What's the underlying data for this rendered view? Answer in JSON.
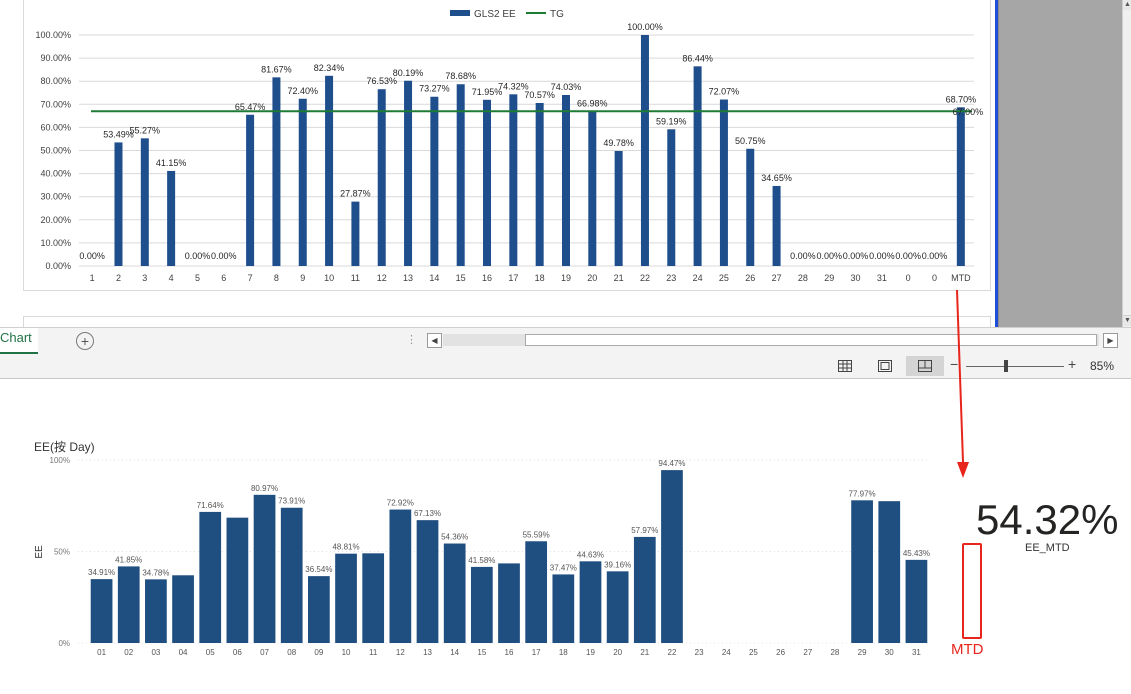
{
  "excel": {
    "sheet_tab": "Chart",
    "zoom": "85%",
    "zoom_minus": "−",
    "zoom_plus": "+"
  },
  "chart_data": [
    {
      "type": "bar",
      "legend": [
        "GLS2 EE",
        "TG"
      ],
      "legend_position": "top",
      "categories": [
        "1",
        "2",
        "3",
        "4",
        "5",
        "6",
        "7",
        "8",
        "9",
        "10",
        "11",
        "12",
        "13",
        "14",
        "15",
        "16",
        "17",
        "18",
        "19",
        "20",
        "21",
        "22",
        "23",
        "24",
        "25",
        "26",
        "27",
        "28",
        "29",
        "30",
        "31",
        "0",
        "0",
        "MTD"
      ],
      "series": [
        {
          "name": "GLS2 EE",
          "values": [
            0,
            53.49,
            55.27,
            41.15,
            0,
            0,
            65.47,
            81.67,
            72.4,
            82.34,
            27.87,
            76.53,
            80.19,
            73.27,
            78.68,
            71.95,
            74.32,
            70.57,
            74.03,
            66.98,
            49.78,
            100.0,
            59.19,
            86.44,
            72.07,
            50.75,
            34.65,
            0,
            0,
            0,
            0,
            0,
            0,
            68.7
          ]
        },
        {
          "name": "TG",
          "type": "line",
          "value": 67.0
        }
      ],
      "data_labels": [
        "0.00%",
        "53.49%",
        "55.27%",
        "41.15%",
        "0.00%",
        "0.00%",
        "65.47%",
        "81.67%",
        "72.40%",
        "82.34%",
        "27.87%",
        "76.53%",
        "80.19%",
        "73.27%",
        "78.68%",
        "71.95%",
        "74.32%",
        "70.57%",
        "74.03%",
        "66.98%",
        "49.78%",
        "100.00%",
        "59.19%",
        "86.44%",
        "72.07%",
        "50.75%",
        "34.65%",
        "0.00%",
        "0.00%",
        "0.00%",
        "0.00%",
        "0.00%",
        "0.00%",
        "68.70%"
      ],
      "tg_label": "67.00%",
      "y_ticks": [
        "0.00%",
        "10.00%",
        "20.00%",
        "30.00%",
        "40.00%",
        "50.00%",
        "60.00%",
        "70.00%",
        "80.00%",
        "90.00%",
        "100.00%"
      ],
      "ylim": [
        0,
        100
      ],
      "grid": true,
      "colors": {
        "bar": "#1f4e8c",
        "tg": "#1e7b34"
      }
    },
    {
      "type": "bar",
      "title": "EE(按 Day)",
      "ylabel": "EE",
      "categories": [
        "01",
        "02",
        "03",
        "04",
        "05",
        "06",
        "07",
        "08",
        "09",
        "10",
        "11",
        "12",
        "13",
        "14",
        "15",
        "16",
        "17",
        "18",
        "19",
        "20",
        "21",
        "22",
        "23",
        "24",
        "25",
        "26",
        "27",
        "28",
        "29",
        "30",
        "31"
      ],
      "values": [
        34.91,
        41.85,
        34.78,
        37.0,
        71.64,
        68.5,
        80.97,
        73.91,
        36.54,
        48.81,
        49.0,
        72.92,
        67.13,
        54.36,
        41.58,
        43.5,
        55.59,
        37.47,
        44.63,
        39.16,
        57.97,
        94.47,
        null,
        null,
        null,
        null,
        null,
        null,
        77.97,
        77.5,
        45.43
      ],
      "data_labels": [
        "34.91%",
        "41.85%",
        "34.78%",
        "",
        "71.64%",
        "",
        "80.97%",
        "73.91%",
        "36.54%",
        "48.81%",
        "",
        "72.92%",
        "67.13%",
        "54.36%",
        "41.58%",
        "",
        "55.59%",
        "37.47%",
        "44.63%",
        "39.16%",
        "57.97%",
        "94.47%",
        "",
        "",
        "",
        "",
        "",
        "",
        "77.97%",
        "",
        "45.43%"
      ],
      "y_ticks": [
        "0%",
        "50%",
        "100%"
      ],
      "ylim": [
        0,
        100
      ],
      "grid": true,
      "colors": {
        "bar": "#1f4e80"
      }
    }
  ],
  "kpi": {
    "value": "54.32%",
    "label": "EE_MTD"
  },
  "annotation": {
    "label": "MTD",
    "color": "#e8251d"
  }
}
